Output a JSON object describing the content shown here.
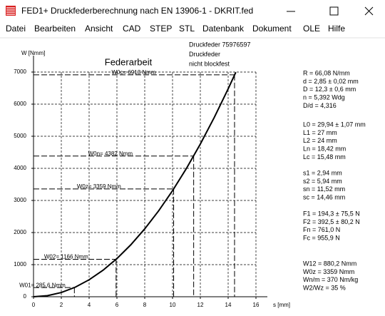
{
  "window": {
    "title": "FED1+  Druckfederberechnung nach EN 13906-1  -  DKRIT.fed"
  },
  "menu": [
    "Datei",
    "Bearbeiten",
    "Ansicht",
    "CAD",
    "STEP",
    "STL",
    "Datenbank",
    "Dokument",
    "OLE",
    "Hilfe"
  ],
  "header": [
    "Druckfeder  75976597",
    "Druckfeder",
    "nicht blockfest"
  ],
  "info": [
    [
      "R = 66,08 N/mm",
      "d = 2,85 ± 0,02 mm",
      "D = 12,3 ± 0,6 mm",
      "n = 5,392 Wdg",
      "D/d = 4,316"
    ],
    [
      "L0 = 29,94 ± 1,07 mm",
      "L1 = 27 mm",
      "L2 = 24 mm",
      "Ln = 18,42 mm",
      "Lc = 15,48 mm"
    ],
    [
      "s1 = 2,94 mm",
      "s2 = 5,94 mm",
      "sn = 11,52 mm",
      "sc = 14,46 mm"
    ],
    [
      "F1 = 194,3 ± 75,5 N",
      "F2 = 392,5 ± 80,2 N",
      "Fn = 761,0 N",
      "Fc = 955,9 N"
    ],
    [
      "W12 = 880,2 Nmm",
      "W0z = 3359 Nmm",
      "Wn/m = 370 Nm/kg",
      "W2/Wz =  35 %"
    ]
  ],
  "chart_data": {
    "type": "line",
    "title": "Federarbeit",
    "x_label": "s [mm]",
    "y_label": "W [Nmm]",
    "x": [
      0,
      1,
      2,
      3,
      4,
      5,
      6,
      7,
      8,
      9,
      10,
      11,
      12,
      13,
      14,
      14.55
    ],
    "series": [
      {
        "color": "#000000",
        "values": [
          0,
          33,
          132,
          297,
          529,
          826,
          1190,
          1619,
          2115,
          2676,
          3304,
          3998,
          4758,
          5584,
          6476,
          6994
        ]
      }
    ],
    "xlim": [
      0,
      16
    ],
    "ylim": [
      0,
      7000
    ],
    "xticks": [
      0,
      2,
      4,
      6,
      8,
      10,
      12,
      14,
      16
    ],
    "yticks": [
      0,
      1000,
      2000,
      3000,
      4000,
      5000,
      6000,
      7000
    ],
    "grid": true,
    "annotations": [
      {
        "label": "W01= 285,6 Nmm",
        "x": 2.94,
        "y": 285.6
      },
      {
        "label": "W02= 1166 Nmm",
        "x": 5.94,
        "y": 1166
      },
      {
        "label": "W0z= 3359 Nmm",
        "x": 10.08,
        "y": 3359
      },
      {
        "label": "W0n= 4382 Nmm",
        "x": 11.52,
        "y": 4382
      },
      {
        "label": "W0c= 6913 Nmm",
        "x": 14.46,
        "y": 6913
      }
    ]
  }
}
